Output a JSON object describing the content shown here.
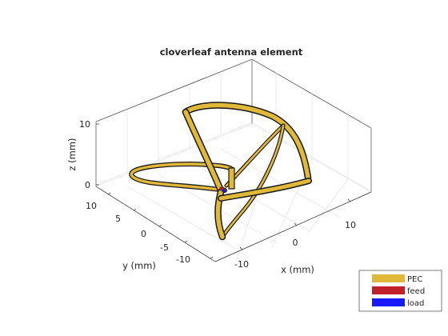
{
  "figure": {
    "title": "cloverleaf antenna element",
    "xlabel": "x (mm)",
    "ylabel": "y (mm)",
    "zlabel": "z (mm)",
    "x_ticks": [
      "-10",
      "0",
      "10"
    ],
    "y_ticks": [
      "10",
      "5",
      "0",
      "-5",
      "-10"
    ],
    "z_ticks": [
      "10",
      "0"
    ],
    "grid": true
  },
  "legend": {
    "placement": "bottom-right",
    "items": [
      {
        "label": "PEC",
        "color": "#e0b83a"
      },
      {
        "label": "feed",
        "color": "#c0202a"
      },
      {
        "label": "load",
        "color": "#1a1aff"
      }
    ]
  },
  "colors": {
    "pec": "#e0b83a",
    "edge": "#1a1a1a",
    "feed": "#c0202a",
    "load": "#1a1aff",
    "grid": "#e3e3e3",
    "axis": "#262626"
  }
}
